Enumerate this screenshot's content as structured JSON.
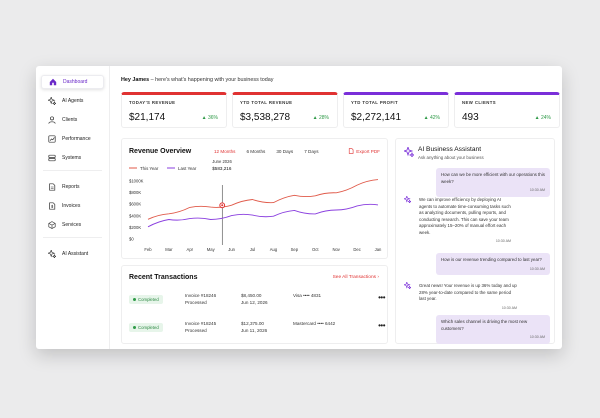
{
  "sidebar": {
    "items": [
      {
        "label": "Dashboard",
        "icon": "home-icon"
      },
      {
        "label": "AI Agents",
        "icon": "sparkle-icon"
      },
      {
        "label": "Clients",
        "icon": "user-icon"
      },
      {
        "label": "Performance",
        "icon": "chart-icon"
      },
      {
        "label": "Systems",
        "icon": "database-icon"
      },
      {
        "label": "Reports",
        "icon": "document-icon"
      },
      {
        "label": "Invoices",
        "icon": "dollar-file-icon"
      },
      {
        "label": "Services",
        "icon": "box-icon"
      },
      {
        "label": "AI Assistant",
        "icon": "sparkle-icon"
      }
    ]
  },
  "greeting": {
    "name": "Hey James",
    "text": " –  here's what's happening with your business today"
  },
  "kpis": [
    {
      "label": "TODAY'S REVENUE",
      "value": "$21,174",
      "change": "36%",
      "color": "#e03232"
    },
    {
      "label": "YTD TOTAL REVENUE",
      "value": "$3,538,278",
      "change": "28%",
      "color": "#e03232"
    },
    {
      "label": "YTD TOTAL PROFIT",
      "value": "$2,272,141",
      "change": "42%",
      "color": "#7a2fd9"
    },
    {
      "label": "NEW CLIENTS",
      "value": "493",
      "change": "24%",
      "color": "#7a2fd9"
    }
  ],
  "revenue": {
    "title": "Revenue Overview",
    "tabs": [
      "12 Months",
      "6 Months",
      "30 Days",
      "7 Days"
    ],
    "active_tab": "12 Months",
    "export_label": "Export PDF"
  },
  "chart_data": {
    "type": "line",
    "x": [
      "Feb",
      "Mar",
      "Apr",
      "May",
      "Jun",
      "Jul",
      "Aug",
      "Sep",
      "Oct",
      "Nov",
      "Dec",
      "Jan"
    ],
    "series": [
      {
        "name": "This Year",
        "color": "#e05a4a",
        "values": [
          340,
          460,
          510,
          570,
          590,
          650,
          660,
          740,
          730,
          830,
          900,
          1030
        ]
      },
      {
        "name": "Last Year",
        "color": "#8a3fdf",
        "values": [
          240,
          330,
          330,
          370,
          380,
          410,
          420,
          460,
          450,
          510,
          540,
          620
        ]
      }
    ],
    "y_ticks": [
      "$1000K",
      "$800K",
      "$600K",
      "$400K",
      "$200K",
      "$0"
    ],
    "ylim": [
      0,
      1000
    ],
    "tooltip": {
      "date": "June 2026",
      "value": "$583,216",
      "x": "Jun"
    },
    "grid": false,
    "legend": "top-left"
  },
  "transactions": {
    "title": "Recent Transactions",
    "see_all": "See All Transactions",
    "rows": [
      {
        "status": "Completed",
        "invoice": "Invoice #18246",
        "state": "Processed",
        "amount": "$8,450.00",
        "date": "Jun 12, 2026",
        "card": "Visa •••• 4831"
      },
      {
        "status": "Completed",
        "invoice": "Invoice #18245",
        "state": "Processed",
        "amount": "$12,375.00",
        "date": "Jun 11, 2026",
        "card": "Mastercard •••• 6442"
      }
    ]
  },
  "assistant": {
    "title": "AI Business Assistant",
    "subtitle": "Ask anything about your business",
    "messages": [
      {
        "from": "user",
        "text": "How can we be more efficient with our operations this week?",
        "time": "10:30 AM"
      },
      {
        "from": "ai",
        "text": "We can improve efficiency by deploying AI agents to automate time-consuming tasks such as analyzing documents, pulling reports, and conducting research. This can save your team approximately 15–20% of manual effort each week.",
        "time": "10:30 AM"
      },
      {
        "from": "user",
        "text": "How is our revenue trending compared to last year?",
        "time": "10:30 AM"
      },
      {
        "from": "ai",
        "text": "Great news! Your revenue is up 36% today and up 28% year-to-date compared to the same period last year.",
        "time": "10:30 AM"
      },
      {
        "from": "user",
        "text": "Which sales channel is driving the most new customers?",
        "time": "10:30 AM"
      }
    ]
  }
}
